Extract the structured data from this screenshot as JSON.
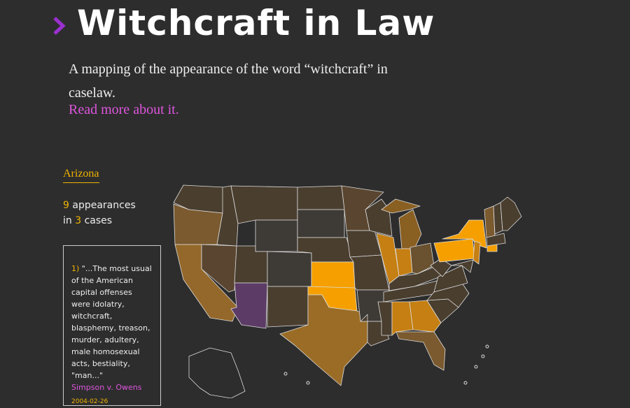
{
  "header": {
    "title": "Witchcraft in Law",
    "description": "A mapping of the appearance of the word “witchcraft” in caselaw.",
    "link": "Read more about it."
  },
  "sidebar": {
    "state": "Arizona",
    "appearances": 9,
    "appearances_label": "appearances",
    "cases_prefix": "in",
    "cases": 3,
    "cases_label": "cases",
    "quote": {
      "number": "1)",
      "text": "\"...The most usual of the American capital offenses were idolatry, witchcraft, blasphemy, treason, murder, adultery, male homosexual acts, bestiality, \"man...\"",
      "case": "Simpson v. Owens",
      "date": "2004-02-26"
    }
  }
}
